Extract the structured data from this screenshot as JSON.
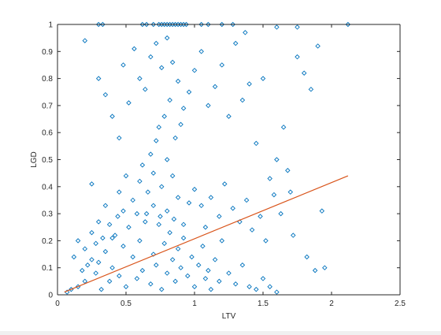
{
  "chart_data": {
    "type": "scatter",
    "title": "",
    "xlabel": "LTV",
    "ylabel": "LGD",
    "xlim": [
      0,
      2.5
    ],
    "ylim": [
      0,
      1
    ],
    "xticks": [
      "0",
      "0.5",
      "1",
      "1.5",
      "2",
      "2.5"
    ],
    "yticks": [
      "0",
      "0.1",
      "0.2",
      "0.3",
      "0.4",
      "0.5",
      "0.6",
      "0.7",
      "0.8",
      "0.9",
      "1"
    ],
    "grid": false,
    "legend": "none",
    "marker": "diamond-open",
    "colors": {
      "points": "#0072bd",
      "fit_line": "#d95319",
      "axes": "#262626"
    },
    "series": [
      {
        "type": "scatter",
        "points": [
          [
            0.07,
            0.01
          ],
          [
            0.1,
            0.02
          ],
          [
            0.15,
            0.03
          ],
          [
            0.2,
            0.05
          ],
          [
            0.12,
            0.14
          ],
          [
            0.18,
            0.09
          ],
          [
            0.22,
            0.11
          ],
          [
            0.25,
            0.13
          ],
          [
            0.28,
            0.08
          ],
          [
            0.3,
            0.12
          ],
          [
            0.32,
            0.02
          ],
          [
            0.35,
            0.16
          ],
          [
            0.38,
            0.05
          ],
          [
            0.4,
            0.1
          ],
          [
            0.42,
            0.22
          ],
          [
            0.45,
            0.07
          ],
          [
            0.48,
            0.18
          ],
          [
            0.5,
            0.03
          ],
          [
            0.52,
            0.25
          ],
          [
            0.55,
            0.14
          ],
          [
            0.58,
            0.06
          ],
          [
            0.6,
            0.2
          ],
          [
            0.62,
            0.09
          ],
          [
            0.65,
            0.3
          ],
          [
            0.68,
            0.04
          ],
          [
            0.7,
            0.15
          ],
          [
            0.72,
            0.11
          ],
          [
            0.74,
            0.26
          ],
          [
            0.76,
            0.02
          ],
          [
            0.78,
            0.19
          ],
          [
            0.8,
            0.08
          ],
          [
            0.82,
            0.23
          ],
          [
            0.84,
            0.13
          ],
          [
            0.86,
            0.05
          ],
          [
            0.88,
            0.17
          ],
          [
            0.9,
            0.1
          ],
          [
            0.92,
            0.21
          ],
          [
            0.95,
            0.07
          ],
          [
            0.98,
            0.14
          ],
          [
            1.0,
            0.03
          ],
          [
            1.03,
            0.11
          ],
          [
            1.06,
            0.18
          ],
          [
            1.08,
            0.06
          ],
          [
            1.1,
            0.09
          ],
          [
            1.12,
            0.02
          ],
          [
            1.15,
            0.13
          ],
          [
            1.18,
            0.05
          ],
          [
            1.2,
            0.2
          ],
          [
            1.25,
            0.08
          ],
          [
            1.3,
            0.04
          ],
          [
            1.35,
            0.11
          ],
          [
            1.4,
            0.03
          ],
          [
            1.45,
            0.02
          ],
          [
            1.5,
            0.06
          ],
          [
            1.55,
            0.03
          ],
          [
            1.6,
            0.01
          ],
          [
            0.55,
            0.35
          ],
          [
            0.6,
            0.42
          ],
          [
            0.62,
            0.48
          ],
          [
            0.66,
            0.38
          ],
          [
            0.68,
            0.52
          ],
          [
            0.7,
            0.45
          ],
          [
            0.72,
            0.57
          ],
          [
            0.74,
            0.62
          ],
          [
            0.76,
            0.4
          ],
          [
            0.78,
            0.66
          ],
          [
            0.8,
            0.5
          ],
          [
            0.82,
            0.72
          ],
          [
            0.84,
            0.44
          ],
          [
            0.86,
            0.58
          ],
          [
            0.88,
            0.36
          ],
          [
            0.9,
            0.63
          ],
          [
            0.58,
            0.3
          ],
          [
            0.64,
            0.27
          ],
          [
            0.7,
            0.33
          ],
          [
            0.75,
            0.29
          ],
          [
            0.8,
            0.31
          ],
          [
            0.85,
            0.28
          ],
          [
            0.92,
            0.26
          ],
          [
            0.96,
            0.34
          ],
          [
            0.3,
            0.8
          ],
          [
            0.35,
            0.74
          ],
          [
            0.4,
            0.66
          ],
          [
            0.45,
            0.58
          ],
          [
            0.48,
            0.85
          ],
          [
            0.52,
            0.71
          ],
          [
            0.56,
            0.91
          ],
          [
            0.6,
            0.8
          ],
          [
            0.64,
            0.76
          ],
          [
            0.68,
            0.88
          ],
          [
            0.72,
            0.93
          ],
          [
            0.76,
            0.84
          ],
          [
            0.8,
            0.95
          ],
          [
            0.84,
            0.86
          ],
          [
            0.88,
            0.79
          ],
          [
            0.92,
            0.69
          ],
          [
            0.96,
            0.75
          ],
          [
            1.0,
            0.83
          ],
          [
            1.05,
            0.9
          ],
          [
            1.1,
            0.7
          ],
          [
            1.15,
            0.77
          ],
          [
            1.2,
            0.85
          ],
          [
            1.25,
            0.66
          ],
          [
            1.3,
            0.93
          ],
          [
            1.35,
            0.72
          ],
          [
            1.4,
            0.78
          ],
          [
            1.45,
            0.56
          ],
          [
            1.5,
            0.8
          ],
          [
            1.55,
            0.43
          ],
          [
            1.6,
            0.5
          ],
          [
            1.65,
            0.62
          ],
          [
            1.7,
            0.38
          ],
          [
            1.75,
            0.88
          ],
          [
            1.8,
            0.82
          ],
          [
            1.85,
            0.76
          ],
          [
            1.9,
            0.92
          ],
          [
            1.93,
            0.31
          ],
          [
            1.95,
            0.1
          ],
          [
            2.12,
            1.0
          ],
          [
            0.2,
            0.94
          ],
          [
            0.62,
            1.0
          ],
          [
            0.65,
            1.0
          ],
          [
            0.7,
            1.0
          ],
          [
            0.74,
            1.0
          ],
          [
            0.76,
            1.0
          ],
          [
            0.78,
            1.0
          ],
          [
            0.8,
            1.0
          ],
          [
            0.82,
            1.0
          ],
          [
            0.84,
            1.0
          ],
          [
            0.86,
            1.0
          ],
          [
            0.88,
            1.0
          ],
          [
            0.9,
            1.0
          ],
          [
            0.92,
            1.0
          ],
          [
            0.94,
            1.0
          ],
          [
            0.3,
            1.0
          ],
          [
            0.33,
            1.0
          ],
          [
            1.05,
            1.0
          ],
          [
            1.1,
            1.0
          ],
          [
            1.2,
            1.0
          ],
          [
            1.28,
            1.0
          ],
          [
            1.37,
            0.97
          ],
          [
            1.6,
            0.99
          ],
          [
            1.75,
            0.99
          ],
          [
            0.25,
            0.41
          ],
          [
            0.3,
            0.27
          ],
          [
            0.35,
            0.33
          ],
          [
            0.4,
            0.21
          ],
          [
            0.45,
            0.38
          ],
          [
            0.5,
            0.44
          ],
          [
            1.0,
            0.39
          ],
          [
            1.05,
            0.33
          ],
          [
            1.08,
            0.25
          ],
          [
            1.12,
            0.36
          ],
          [
            1.18,
            0.29
          ],
          [
            1.22,
            0.41
          ],
          [
            1.28,
            0.32
          ],
          [
            1.33,
            0.27
          ],
          [
            1.38,
            0.35
          ],
          [
            1.42,
            0.24
          ],
          [
            1.48,
            0.29
          ],
          [
            1.52,
            0.2
          ],
          [
            1.58,
            0.37
          ],
          [
            1.63,
            0.3
          ],
          [
            1.68,
            0.46
          ],
          [
            1.72,
            0.22
          ],
          [
            1.82,
            0.14
          ],
          [
            1.88,
            0.09
          ],
          [
            0.15,
            0.2
          ],
          [
            0.2,
            0.17
          ],
          [
            0.25,
            0.23
          ],
          [
            0.28,
            0.19
          ],
          [
            0.33,
            0.21
          ],
          [
            0.38,
            0.26
          ],
          [
            0.44,
            0.29
          ],
          [
            0.48,
            0.31
          ]
        ]
      },
      {
        "type": "line",
        "points": [
          [
            0.05,
            0.01
          ],
          [
            2.12,
            0.44
          ]
        ]
      }
    ]
  }
}
